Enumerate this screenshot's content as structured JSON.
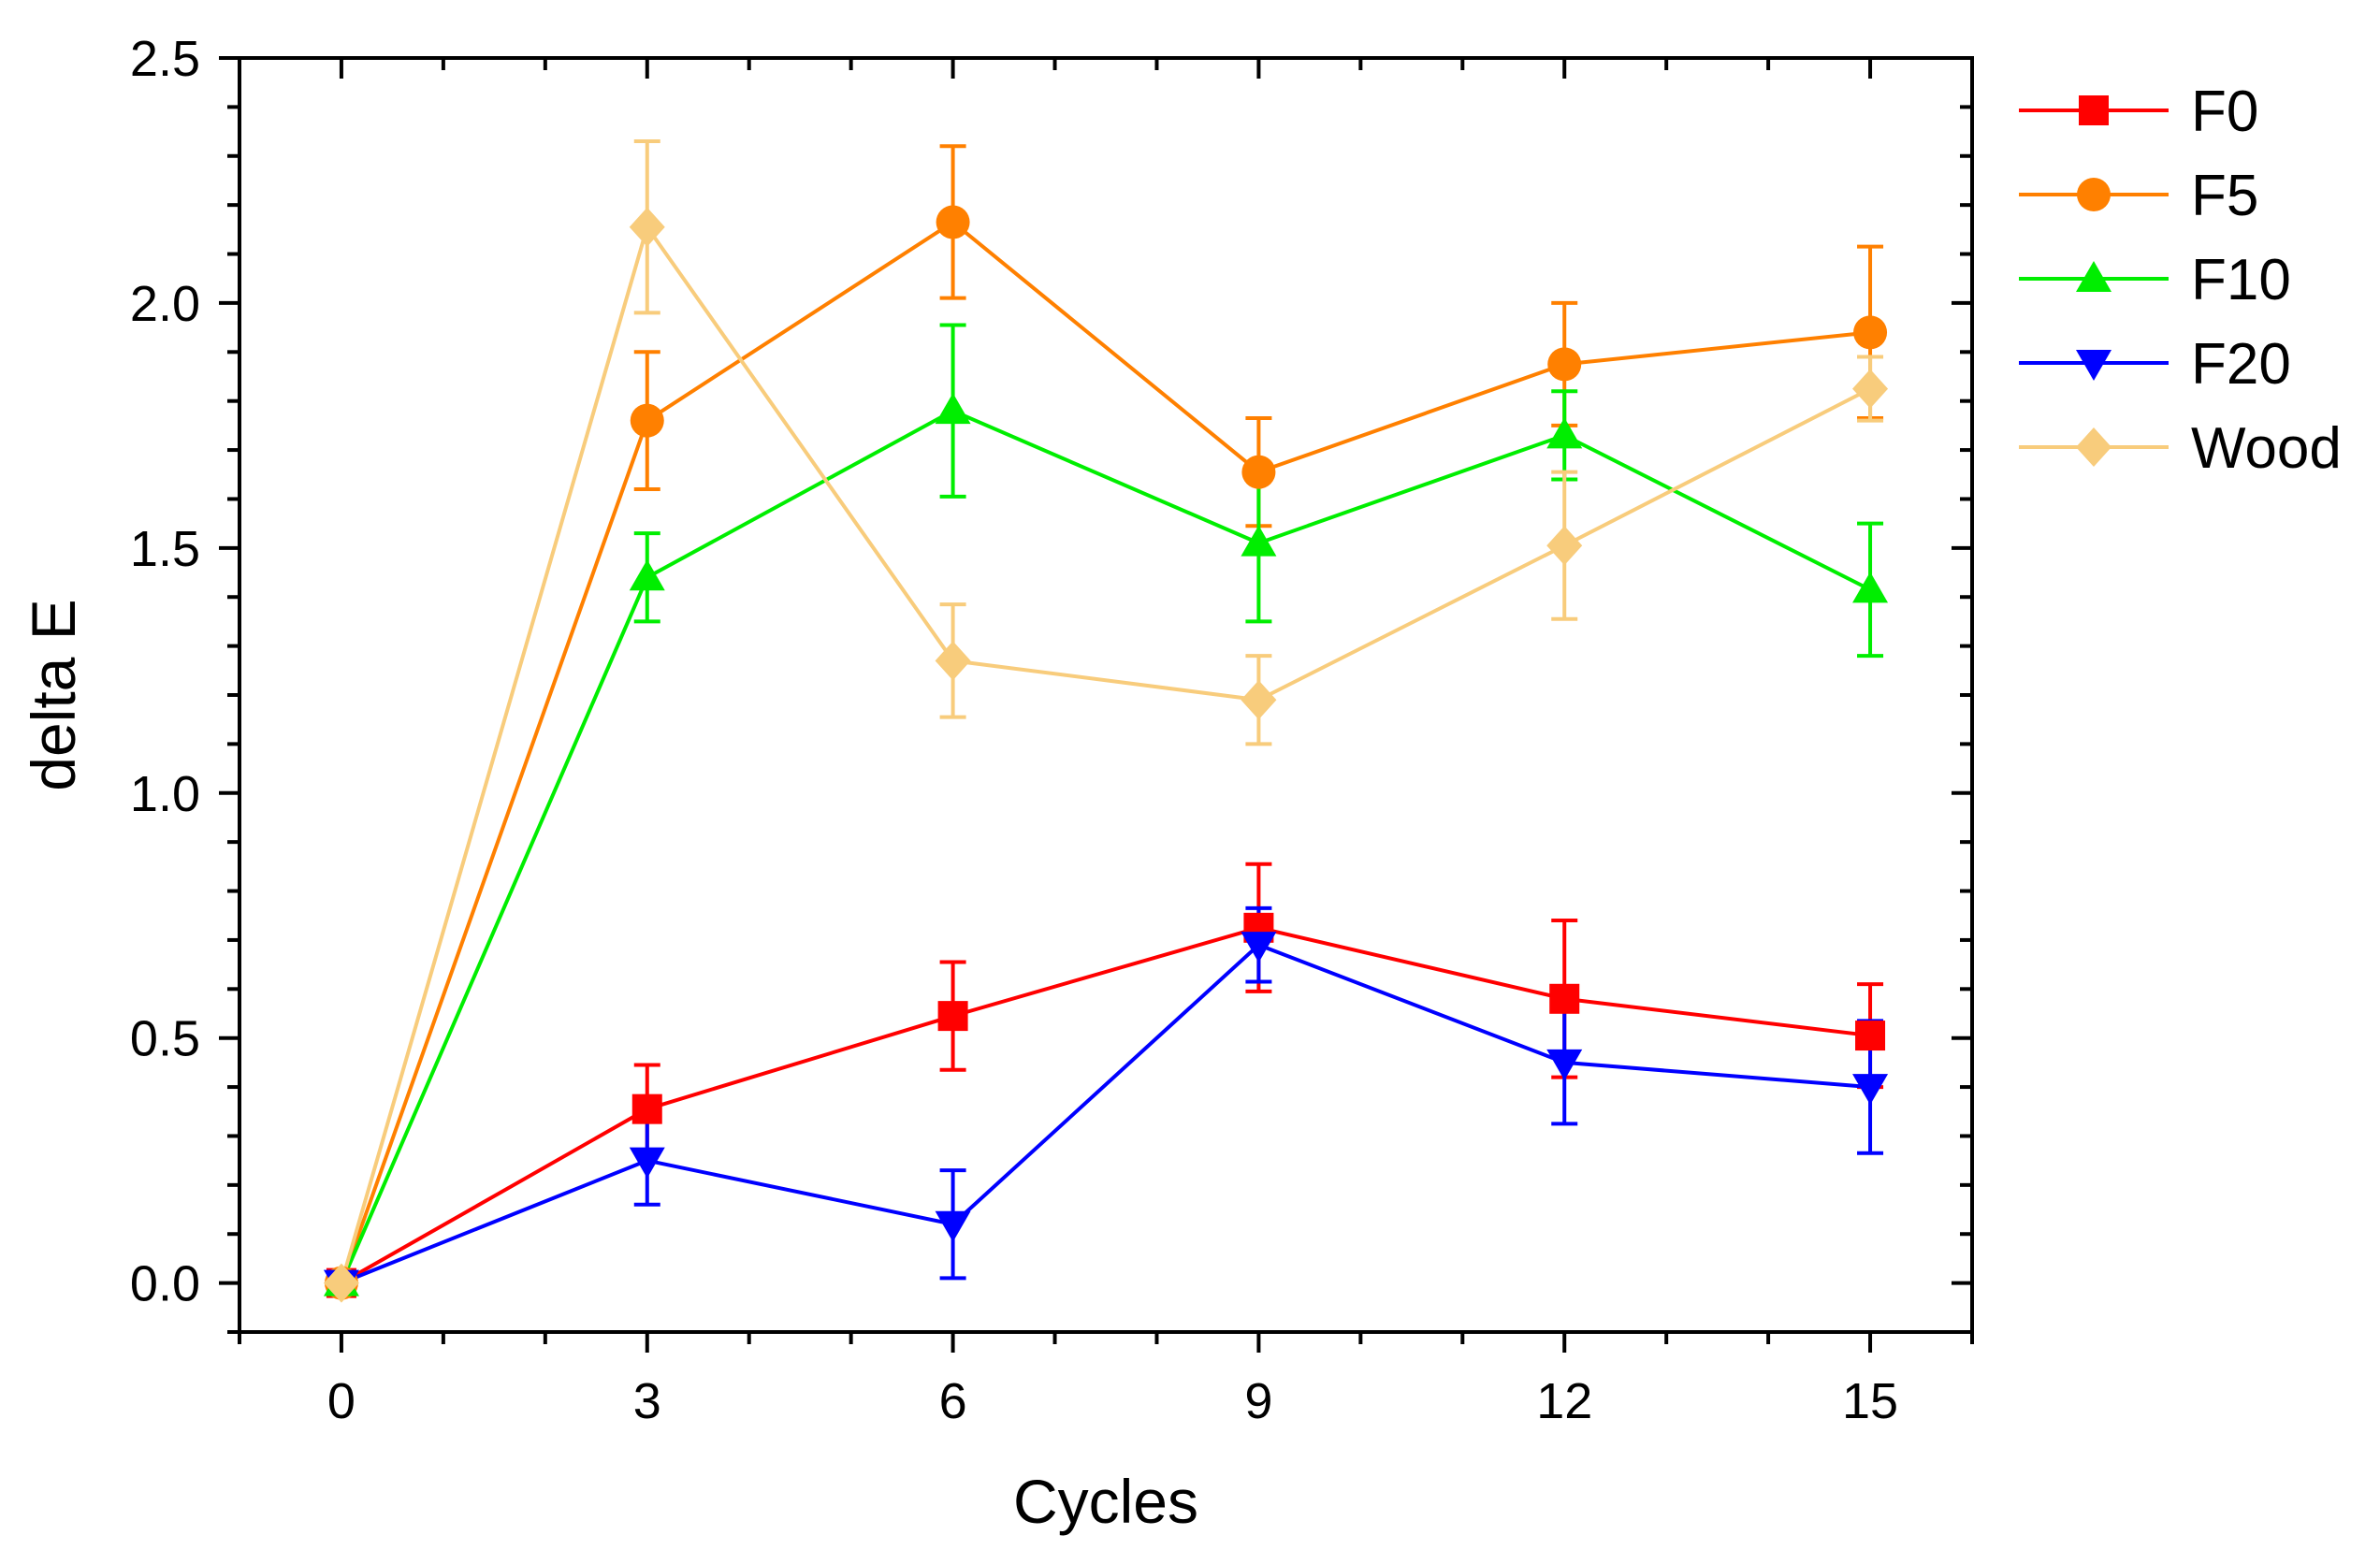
{
  "chart_data": {
    "type": "line",
    "title": "",
    "xlabel": "Cycles",
    "ylabel": "delta E",
    "xlim": [
      -1,
      16
    ],
    "ylim": [
      -0.1,
      2.5
    ],
    "x": [
      0,
      3,
      6,
      9,
      12,
      15
    ],
    "xticks": [
      0,
      3,
      6,
      9,
      12,
      15
    ],
    "xtick_labels": [
      "0",
      "3",
      "6",
      "9",
      "12",
      "15"
    ],
    "yticks": [
      0.0,
      0.5,
      1.0,
      1.5,
      2.0,
      2.5
    ],
    "ytick_labels": [
      "0.0",
      "0.5",
      "1.0",
      "1.5",
      "2.0",
      "2.5"
    ],
    "grid": false,
    "legend_position": "right-outside",
    "series": [
      {
        "name": "F0",
        "color": "#ff0000",
        "marker": "square",
        "values": [
          0.0,
          0.355,
          0.545,
          0.725,
          0.58,
          0.505
        ],
        "errors": [
          0.0,
          0.09,
          0.11,
          0.13,
          0.16,
          0.105
        ]
      },
      {
        "name": "F5",
        "color": "#ff8000",
        "marker": "circle",
        "values": [
          0.0,
          1.76,
          2.165,
          1.655,
          1.875,
          1.94
        ],
        "errors": [
          0.0,
          0.14,
          0.155,
          0.11,
          0.125,
          0.175
        ]
      },
      {
        "name": "F10",
        "color": "#00ee00",
        "marker": "triangle-up",
        "values": [
          0.0,
          1.44,
          1.78,
          1.51,
          1.73,
          1.415
        ],
        "errors": [
          0.0,
          0.09,
          0.175,
          0.16,
          0.09,
          0.135
        ]
      },
      {
        "name": "F20",
        "color": "#0000ff",
        "marker": "triangle-down",
        "values": [
          0.0,
          0.25,
          0.12,
          0.69,
          0.45,
          0.4
        ],
        "errors": [
          0.0,
          0.09,
          0.11,
          0.075,
          0.125,
          0.135
        ]
      },
      {
        "name": "Wood",
        "color": "#f8cc7c",
        "marker": "diamond",
        "values": [
          0.0,
          2.155,
          1.27,
          1.19,
          1.505,
          1.825
        ],
        "errors": [
          0.0,
          0.175,
          0.115,
          0.09,
          0.15,
          0.065
        ]
      }
    ]
  }
}
